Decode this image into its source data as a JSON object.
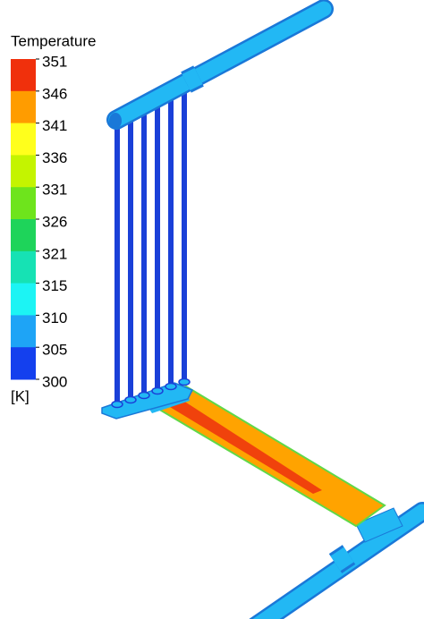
{
  "legend": {
    "title": "Temperature",
    "unit": "[K]",
    "ticks": [
      351,
      346,
      341,
      336,
      331,
      326,
      321,
      315,
      310,
      305,
      300
    ],
    "colors": [
      "#f0300c",
      "#ff9c00",
      "#ffff1c",
      "#c4f400",
      "#6ee41c",
      "#1ed45a",
      "#16e2b4",
      "#1cf4f4",
      "#1ea4f6",
      "#1440ee"
    ]
  }
}
